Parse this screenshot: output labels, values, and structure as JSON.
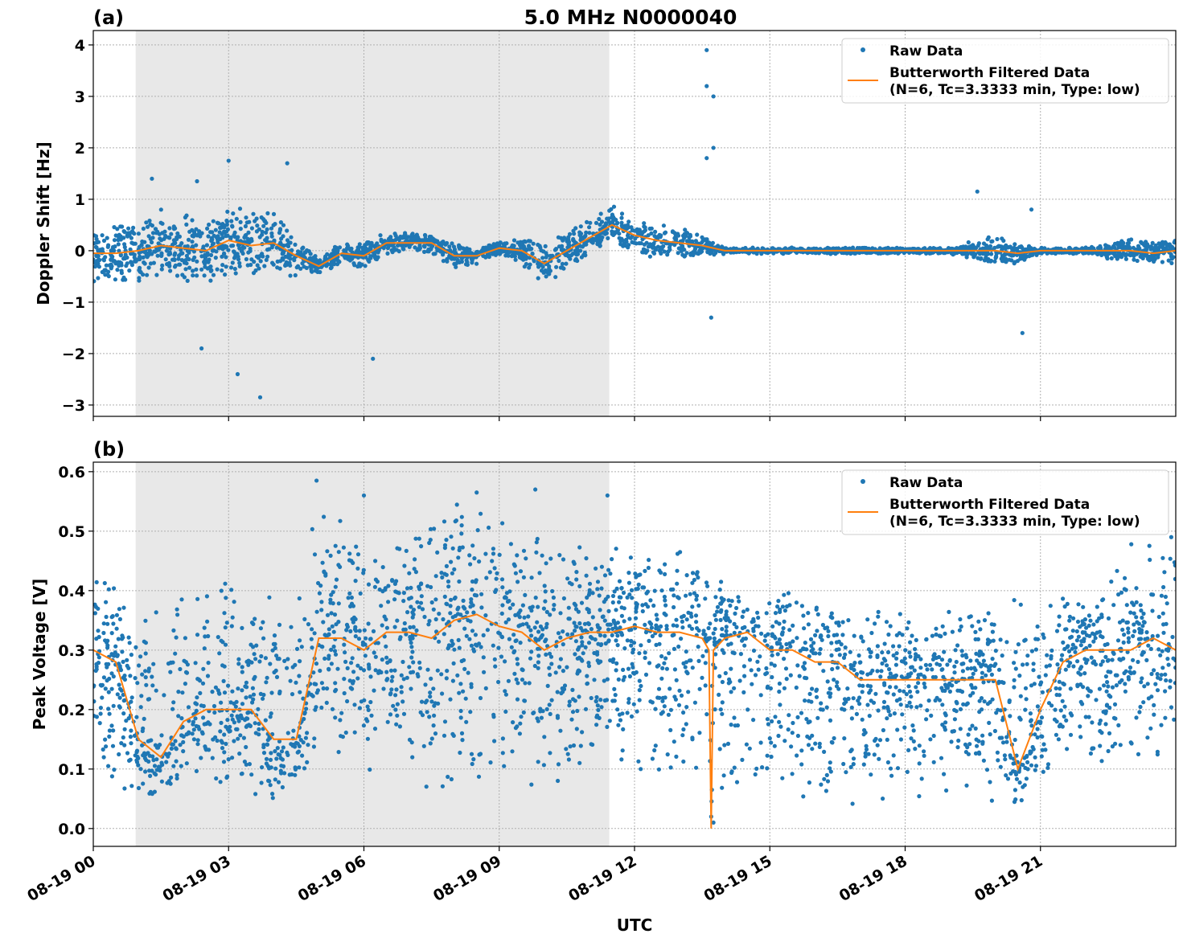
{
  "chart_data": {
    "title": "5.0 MHz N0000040",
    "xlabel": "UTC",
    "x_tick_labels": [
      "08-19 00",
      "08-19 03",
      "08-19 06",
      "08-19 09",
      "08-19 12",
      "08-19 15",
      "08-19 18",
      "08-19 21"
    ],
    "x_ticks_hours": [
      0,
      3,
      6,
      9,
      12,
      15,
      18,
      21
    ],
    "xlim_hours": [
      0,
      24
    ],
    "shaded_interval_hours": [
      0.94,
      11.44
    ],
    "grid": true,
    "colors": {
      "raw": "#1f77b4",
      "filtered": "#ff7f0e",
      "shade": "#e8e8e8"
    },
    "panels": [
      {
        "label": "(a)",
        "type": "scatter+line",
        "ylabel": "Doppler Shift [Hz]",
        "ylim": [
          -3.22,
          4.28
        ],
        "y_ticks": [
          -3,
          -2,
          -1,
          0,
          1,
          2,
          3,
          4
        ],
        "y_tick_labels": [
          "−3",
          "−2",
          "−1",
          "0",
          "1",
          "2",
          "3",
          "4"
        ],
        "legend": {
          "placement": "top-right",
          "raw": "Raw Data",
          "filtered_line1": "Butterworth Filtered Data",
          "filtered_line2": "(N=6, Tc=3.3333 min, Type: low)"
        },
        "filtered": {
          "x_hours": [
            0,
            0.5,
            1,
            1.5,
            2,
            2.5,
            3,
            3.5,
            4,
            4.5,
            5,
            5.5,
            6,
            6.5,
            7,
            7.5,
            8,
            8.5,
            9,
            9.5,
            10,
            10.5,
            11,
            11.5,
            12,
            12.5,
            13,
            13.5,
            14,
            15,
            16,
            17,
            18,
            19,
            20,
            20.5,
            21,
            22,
            23,
            23.5,
            24
          ],
          "y": [
            -0.05,
            -0.05,
            0.0,
            0.1,
            0.05,
            0.0,
            0.2,
            0.1,
            0.15,
            -0.1,
            -0.3,
            -0.05,
            -0.1,
            0.15,
            0.15,
            0.15,
            -0.1,
            -0.1,
            0.05,
            0.0,
            -0.25,
            0.0,
            0.25,
            0.5,
            0.3,
            0.2,
            0.15,
            0.1,
            0.0,
            0.0,
            0.0,
            0.0,
            0.0,
            0.0,
            0.0,
            -0.05,
            0.0,
            0.0,
            0.0,
            -0.05,
            0.0
          ]
        },
        "raw_spread": {
          "x_hours": [
            0,
            1,
            2,
            3,
            4,
            5,
            6,
            7,
            8,
            9,
            10,
            11,
            12,
            13,
            14,
            15,
            16,
            17,
            18,
            19,
            20,
            21,
            22,
            23
          ],
          "half_width": [
            0.45,
            0.55,
            0.55,
            0.55,
            0.5,
            0.15,
            0.2,
            0.15,
            0.2,
            0.1,
            0.35,
            0.3,
            0.3,
            0.25,
            0.05,
            0.05,
            0.05,
            0.05,
            0.05,
            0.05,
            0.25,
            0.05,
            0.05,
            0.2
          ]
        },
        "raw_outliers": [
          [
            13.6,
            3.9
          ],
          [
            13.6,
            3.2
          ],
          [
            13.75,
            3.0
          ],
          [
            13.75,
            2.0
          ],
          [
            13.6,
            1.8
          ],
          [
            3.0,
            1.75
          ],
          [
            4.3,
            1.7
          ],
          [
            3.7,
            -2.85
          ],
          [
            3.2,
            -2.4
          ],
          [
            6.2,
            -2.1
          ],
          [
            2.4,
            -1.9
          ],
          [
            20.6,
            -1.6
          ],
          [
            19.6,
            1.15
          ],
          [
            20.8,
            0.8
          ],
          [
            13.7,
            -1.3
          ],
          [
            1.3,
            1.4
          ],
          [
            2.3,
            1.35
          ]
        ]
      },
      {
        "label": "(b)",
        "type": "scatter+line",
        "ylabel": "Peak Voltage [V]",
        "ylim": [
          -0.03,
          0.616
        ],
        "y_ticks": [
          0,
          0.1,
          0.2,
          0.3,
          0.4,
          0.5,
          0.6
        ],
        "y_tick_labels": [
          "0.0",
          "0.1",
          "0.2",
          "0.3",
          "0.4",
          "0.5",
          "0.6"
        ],
        "legend": {
          "placement": "top-right",
          "raw": "Raw Data",
          "filtered_line1": "Butterworth Filtered Data",
          "filtered_line2": "(N=6, Tc=3.3333 min, Type: low)"
        },
        "filtered": {
          "x_hours": [
            0,
            0.5,
            1,
            1.5,
            2,
            2.5,
            3,
            3.5,
            4,
            4.5,
            5,
            5.5,
            6,
            6.5,
            7,
            7.5,
            8,
            8.5,
            9,
            9.5,
            10,
            10.5,
            11,
            11.5,
            12,
            12.5,
            13,
            13.5,
            13.65,
            13.7,
            13.75,
            14,
            14.5,
            15,
            15.5,
            16,
            16.5,
            17,
            17.5,
            18,
            18.5,
            19,
            19.5,
            20,
            20.5,
            21,
            21.5,
            22,
            22.5,
            23,
            23.5,
            24
          ],
          "y": [
            0.3,
            0.28,
            0.15,
            0.12,
            0.18,
            0.2,
            0.2,
            0.2,
            0.15,
            0.15,
            0.32,
            0.32,
            0.3,
            0.33,
            0.33,
            0.32,
            0.35,
            0.36,
            0.34,
            0.33,
            0.3,
            0.32,
            0.33,
            0.33,
            0.34,
            0.33,
            0.33,
            0.32,
            0.3,
            0.0,
            0.3,
            0.32,
            0.33,
            0.3,
            0.3,
            0.28,
            0.28,
            0.25,
            0.25,
            0.25,
            0.25,
            0.25,
            0.25,
            0.25,
            0.1,
            0.2,
            0.28,
            0.3,
            0.3,
            0.3,
            0.32,
            0.3
          ]
        },
        "raw_bands": {
          "x_hours": [
            0,
            1,
            2,
            3,
            4,
            5,
            6,
            7,
            8,
            9,
            10,
            11,
            12,
            13,
            14,
            15,
            16,
            17,
            18,
            19,
            20,
            21,
            22,
            23
          ],
          "low": [
            0.08,
            0.04,
            0.05,
            0.04,
            0.02,
            0.1,
            0.08,
            0.05,
            0.05,
            0.08,
            0.05,
            0.1,
            0.08,
            0.05,
            0.05,
            0.03,
            0.03,
            0.03,
            0.03,
            0.03,
            0.02,
            0.05,
            0.08,
            0.1
          ],
          "high": [
            0.45,
            0.38,
            0.42,
            0.45,
            0.45,
            0.55,
            0.5,
            0.5,
            0.55,
            0.55,
            0.5,
            0.5,
            0.48,
            0.5,
            0.42,
            0.4,
            0.4,
            0.38,
            0.38,
            0.38,
            0.38,
            0.4,
            0.42,
            0.48
          ]
        },
        "raw_outliers": [
          [
            4.95,
            0.585
          ],
          [
            6.0,
            0.56
          ],
          [
            8.5,
            0.565
          ],
          [
            9.8,
            0.57
          ],
          [
            11.4,
            0.56
          ],
          [
            13.7,
            0.02
          ],
          [
            13.75,
            0.01
          ],
          [
            23.9,
            0.49
          ]
        ]
      }
    ]
  }
}
